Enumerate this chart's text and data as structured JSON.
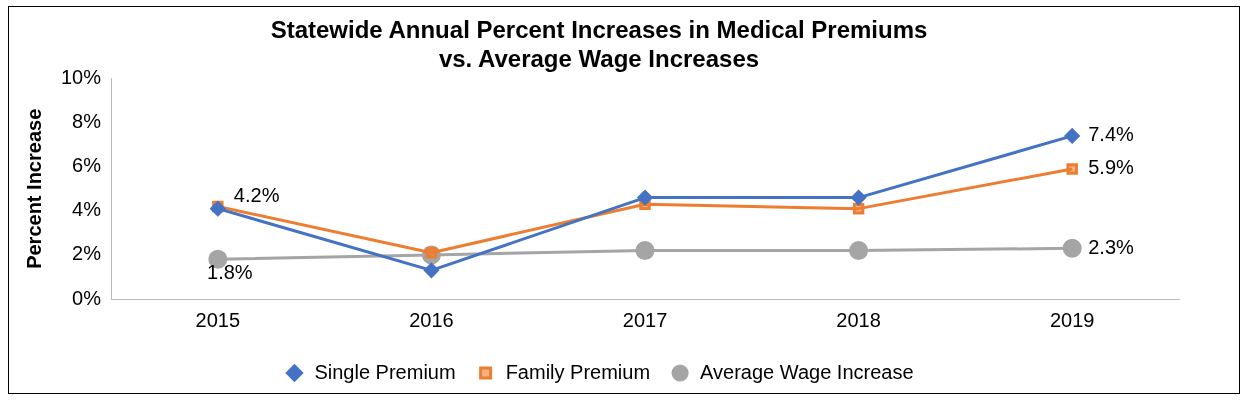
{
  "chart_data": {
    "type": "line",
    "title": "Statewide Annual Percent Increases in Medical Premiums\nvs. Average Wage Increases",
    "ylabel": "Percent Increase",
    "categories": [
      "2015",
      "2016",
      "2017",
      "2018",
      "2019"
    ],
    "series": [
      {
        "name": "Single Premium",
        "color": "#4472c4",
        "marker": "diamond",
        "values": [
          4.1,
          1.3,
          4.6,
          4.6,
          7.4
        ],
        "value_labels": [
          null,
          null,
          null,
          null,
          "7.4%"
        ]
      },
      {
        "name": "Family Premium",
        "color": "#ed7d31",
        "marker": "square",
        "values": [
          4.2,
          2.1,
          4.3,
          4.1,
          5.9
        ],
        "value_labels": [
          "4.2%",
          null,
          null,
          null,
          "5.9%"
        ]
      },
      {
        "name": "Average Wage Increase",
        "color": "#a5a5a5",
        "marker": "circle",
        "values": [
          1.8,
          2.0,
          2.2,
          2.2,
          2.3
        ],
        "value_labels": [
          "1.8%",
          null,
          null,
          null,
          "2.3%"
        ]
      }
    ],
    "ylim": [
      0,
      10
    ],
    "yticks": [
      {
        "value": 0,
        "label": "0%"
      },
      {
        "value": 2,
        "label": "2%"
      },
      {
        "value": 4,
        "label": "4%"
      },
      {
        "value": 6,
        "label": "6%"
      },
      {
        "value": 8,
        "label": "8%"
      },
      {
        "value": 10,
        "label": "10%"
      }
    ],
    "grid": false,
    "legend": "bottom"
  }
}
